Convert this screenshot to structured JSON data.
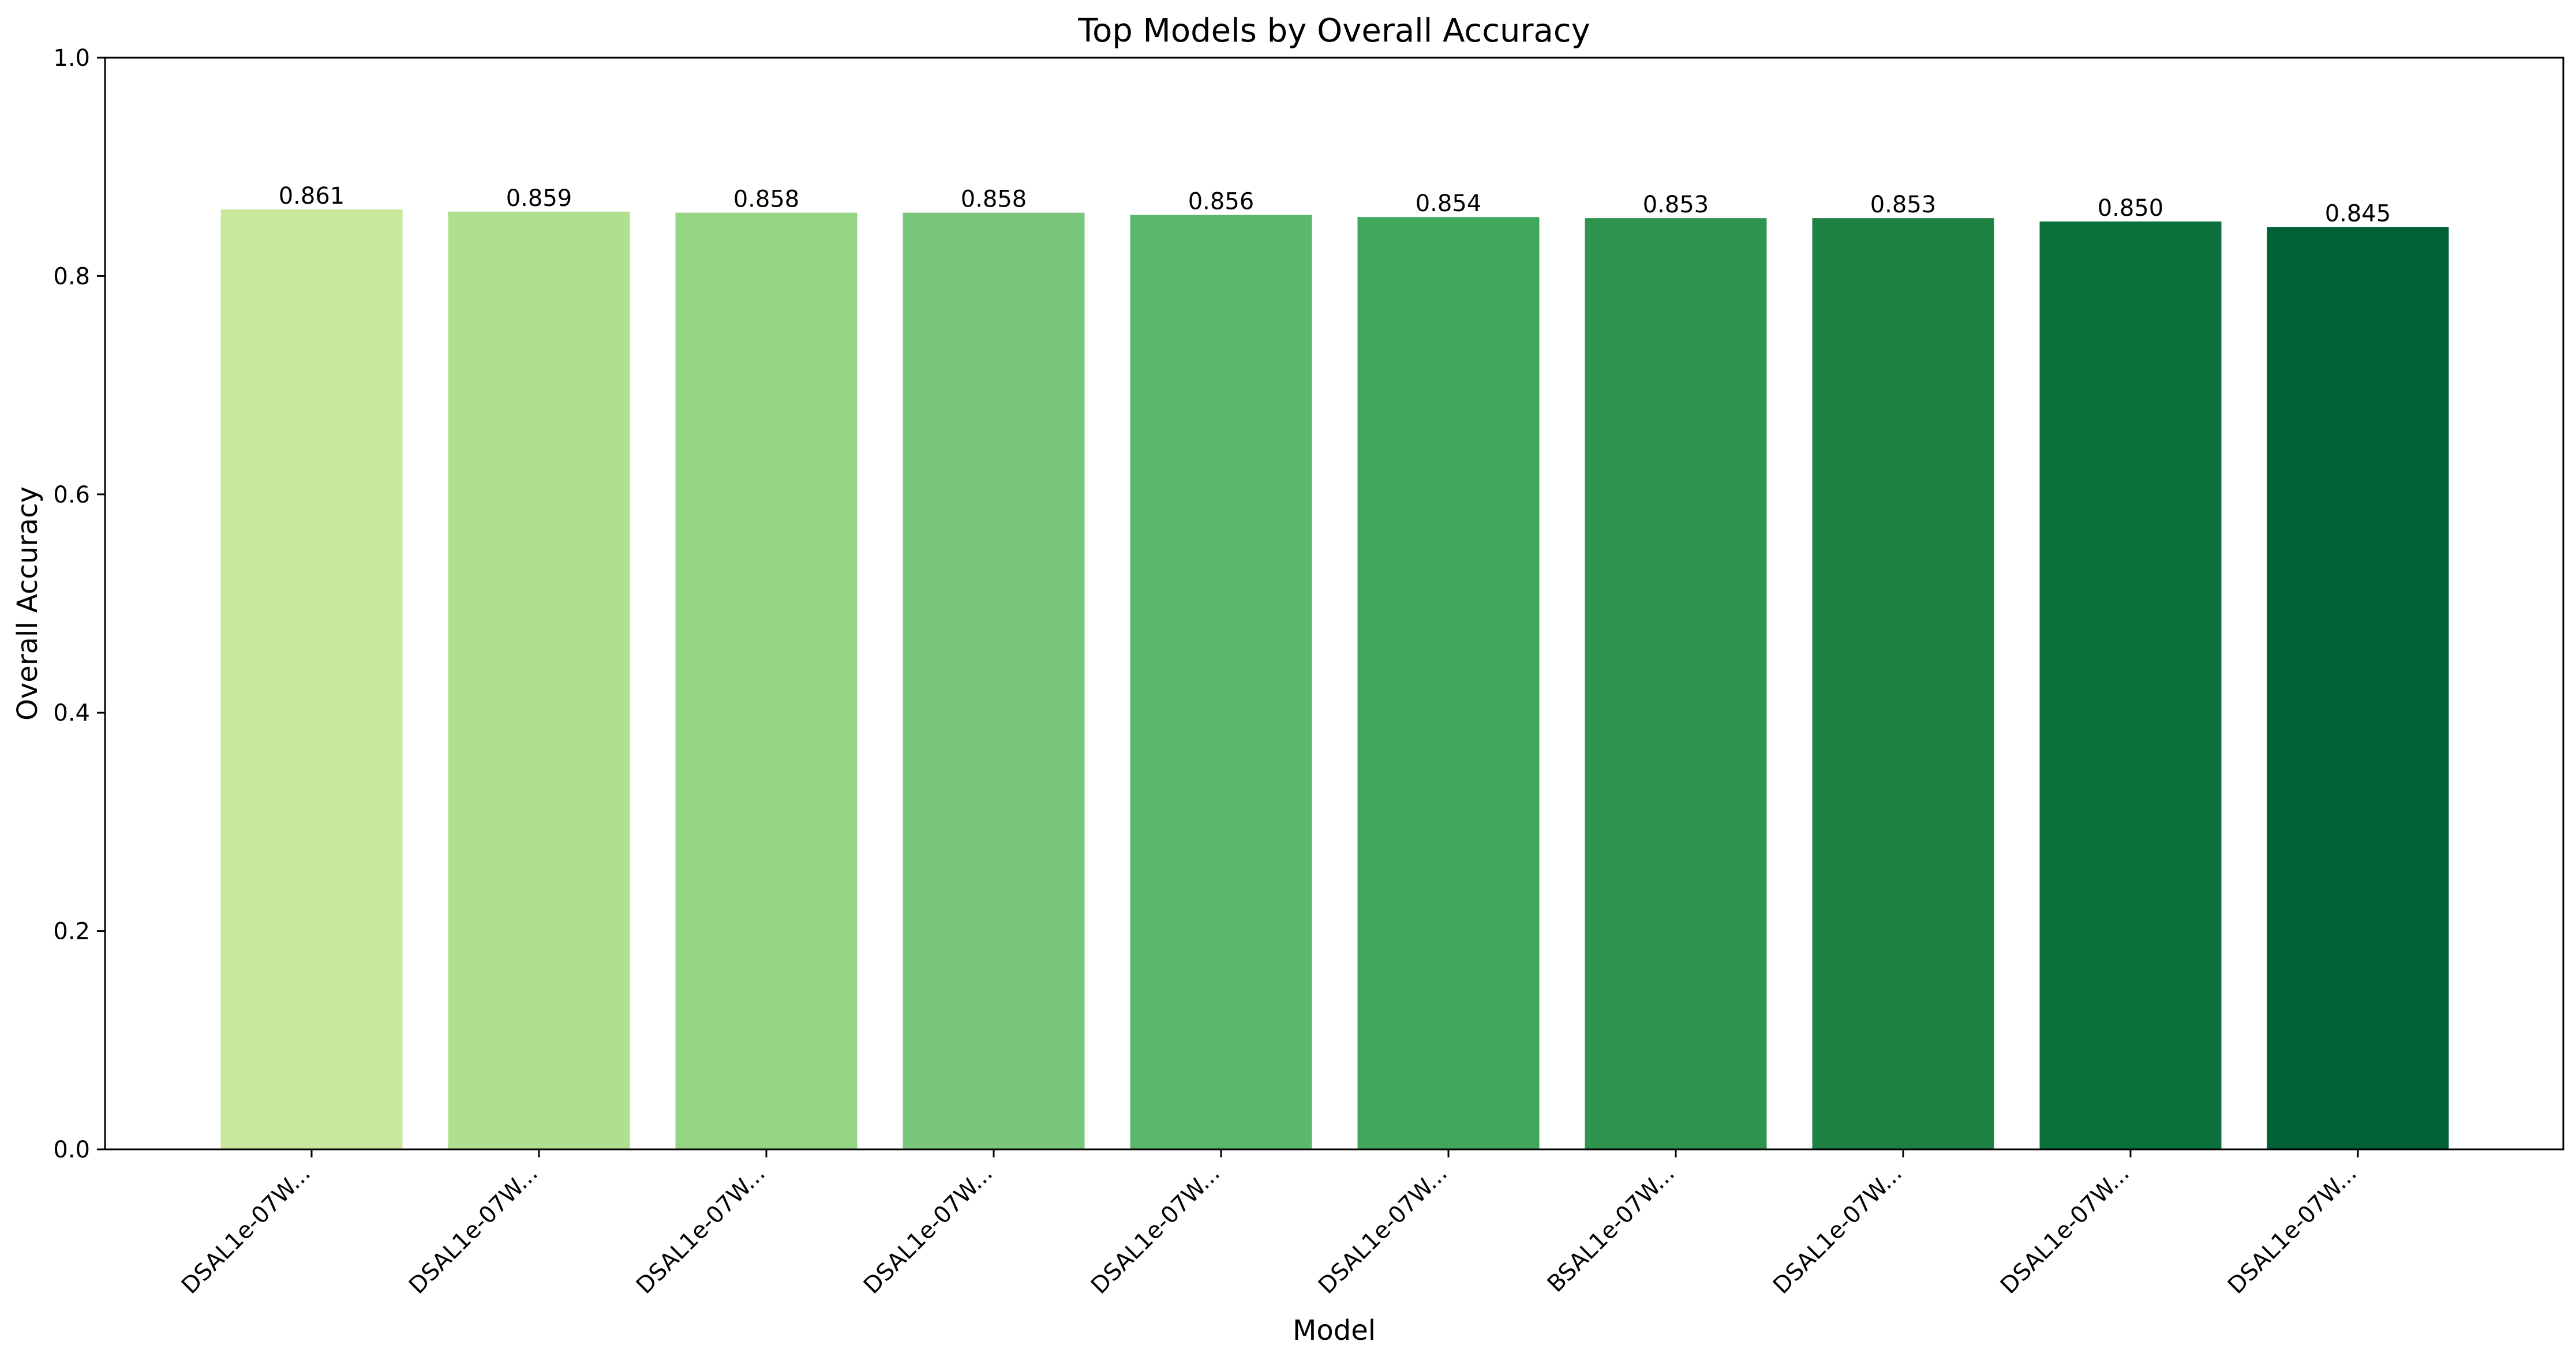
{
  "chart_data": {
    "type": "bar",
    "title": "Top Models by Overall Accuracy",
    "xlabel": "Model",
    "ylabel": "Overall Accuracy",
    "ylim": [
      0,
      1.0
    ],
    "yticks": [
      0.0,
      0.2,
      0.4,
      0.6,
      0.8,
      1.0
    ],
    "ytick_labels": [
      "0.0",
      "0.2",
      "0.4",
      "0.6",
      "0.8",
      "1.0"
    ],
    "grid": false,
    "categories": [
      "DSAL1e-07W...",
      "DSAL1e-07W...",
      "DSAL1e-07W...",
      "DSAL1e-07W...",
      "DSAL1e-07W...",
      "DSAL1e-07W...",
      "BSAL1e-07W...",
      "DSAL1e-07W...",
      "DSAL1e-07W...",
      "DSAL1e-07W..."
    ],
    "values": [
      0.861,
      0.859,
      0.858,
      0.858,
      0.856,
      0.854,
      0.853,
      0.853,
      0.85,
      0.845
    ],
    "value_labels": [
      "0.861",
      "0.859",
      "0.858",
      "0.858",
      "0.856",
      "0.854",
      "0.853",
      "0.853",
      "0.850",
      "0.845"
    ],
    "colors": [
      "#c9e89c",
      "#b0df8f",
      "#95d385",
      "#79c77b",
      "#5bb76b",
      "#41a85b",
      "#2f954e",
      "#1c8142",
      "#0a703c",
      "#026035"
    ]
  }
}
